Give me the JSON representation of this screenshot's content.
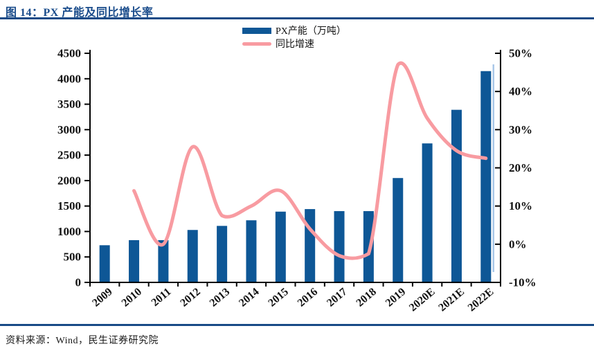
{
  "header": {
    "title": "图 14：PX 产能及同比增长率"
  },
  "legend": {
    "items": [
      {
        "label": "PX产能（万吨）",
        "marker": "bar-swatch"
      },
      {
        "label": "同比增速",
        "marker": "line-swatch"
      }
    ]
  },
  "footer": {
    "source": "资料来源：Wind，民生证券研究院"
  },
  "colors": {
    "accent_navy": "#1A4C8B",
    "rule_navy": "#184A86",
    "bar_blue": "#0E5796",
    "bar_edge_light": "#A9C7E8",
    "line_pink": "#F89BA1",
    "axis_black": "#000000",
    "text_black": "#111111"
  },
  "chart_data": {
    "type": "bar",
    "subtype": "bar+smooth-line, dual axis",
    "title": "PX 产能及同比增长率",
    "categories": [
      "2009",
      "2010",
      "2011",
      "2012",
      "2013",
      "2014",
      "2015",
      "2016",
      "2017",
      "2018",
      "2019",
      "2020E",
      "2021E",
      "2022E"
    ],
    "series": [
      {
        "name": "PX产能（万吨）",
        "type": "bar",
        "axis": "left",
        "values": [
          730,
          830,
          830,
          1030,
          1110,
          1220,
          1390,
          1440,
          1400,
          1400,
          2050,
          2730,
          3390,
          4150
        ]
      },
      {
        "name": "同比增速",
        "type": "line",
        "axis": "right",
        "start_index": 1,
        "values": [
          14,
          0,
          25.5,
          7.5,
          10,
          14,
          4,
          -3,
          -2.5,
          47,
          33,
          24.5,
          22.5
        ]
      }
    ],
    "left_axis": {
      "range": [
        0,
        4500
      ],
      "ticks": [
        "0",
        "500",
        "1000",
        "1500",
        "2000",
        "2500",
        "3000",
        "3500",
        "4000",
        "4500"
      ]
    },
    "right_axis": {
      "range": [
        -10,
        50
      ],
      "ticks": [
        "-10%",
        "0%",
        "10%",
        "20%",
        "30%",
        "40%",
        "50%"
      ]
    },
    "grid": false,
    "legend_position": "top-center",
    "x_label_rotation": -40
  }
}
